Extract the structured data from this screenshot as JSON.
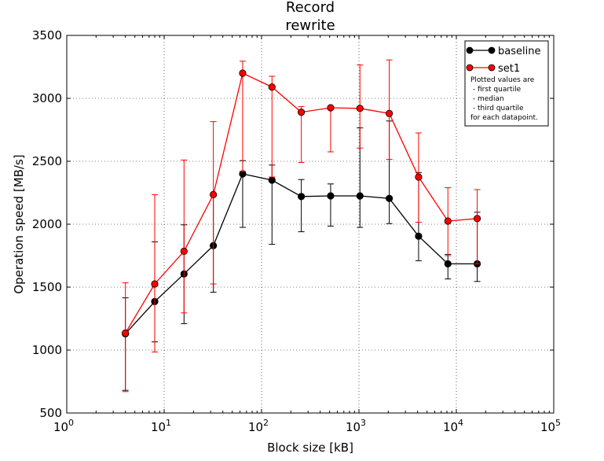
{
  "chart_data": {
    "type": "line",
    "title_lines": [
      "Record",
      "rewrite"
    ],
    "xlabel": "Block size [kB]",
    "ylabel": "Operation speed [MB/s]",
    "x_scale": "log",
    "xlim": [
      1,
      100000
    ],
    "ylim": [
      500,
      3500
    ],
    "grid": true,
    "legend_position": "top-right",
    "x_ticks": [
      {
        "value": 1,
        "base": "10",
        "exp": "0"
      },
      {
        "value": 10,
        "base": "10",
        "exp": "1"
      },
      {
        "value": 100,
        "base": "10",
        "exp": "2"
      },
      {
        "value": 1000,
        "base": "10",
        "exp": "3"
      },
      {
        "value": 10000,
        "base": "10",
        "exp": "4"
      },
      {
        "value": 100000,
        "base": "10",
        "exp": "5"
      }
    ],
    "y_ticks": [
      {
        "value": 500,
        "label": "500"
      },
      {
        "value": 1000,
        "label": "1000"
      },
      {
        "value": 1500,
        "label": "1500"
      },
      {
        "value": 2000,
        "label": "2000"
      },
      {
        "value": 2500,
        "label": "2500"
      },
      {
        "value": 3000,
        "label": "3000"
      },
      {
        "value": 3500,
        "label": "3500"
      }
    ],
    "x": [
      4,
      8,
      16,
      32,
      64,
      128,
      256,
      512,
      1024,
      2048,
      4096,
      8192,
      16384
    ],
    "series": [
      {
        "name": "baseline",
        "color": "#000000",
        "median": [
          1130,
          1385,
          1605,
          1830,
          2400,
          2350,
          2220,
          2225,
          2225,
          2205,
          1905,
          1685,
          1685
        ],
        "q1": [
          680,
          1065,
          1210,
          1460,
          1975,
          1840,
          1940,
          1985,
          1975,
          2005,
          1710,
          1565,
          1545
        ],
        "q3": [
          1415,
          1860,
          1995,
          2225,
          2505,
          2470,
          2355,
          2320,
          2765,
          2820,
          2410,
          1760,
          2095
        ]
      },
      {
        "name": "set1",
        "color": "#ff0000",
        "median": [
          1135,
          1525,
          1785,
          2235,
          3200,
          3090,
          2890,
          2925,
          2920,
          2880,
          2375,
          2025,
          2045
        ],
        "q1": [
          670,
          985,
          1295,
          1525,
          2420,
          2375,
          2490,
          2575,
          2605,
          2515,
          2015,
          1750,
          1685
        ],
        "q3": [
          1535,
          2235,
          2510,
          2815,
          3295,
          3175,
          2935,
          2935,
          3265,
          3305,
          2725,
          2290,
          2275
        ]
      }
    ],
    "legend_note": [
      "Plotted values are",
      " - first quartile",
      " - median",
      " - third quartile",
      "for each datapoint."
    ]
  }
}
